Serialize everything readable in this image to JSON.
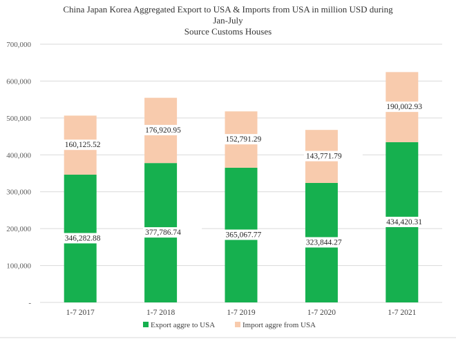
{
  "chart_data": {
    "type": "bar",
    "stacked": true,
    "title_lines": [
      "China Japan Korea Aggregated Export to USA & Imports from USA in million USD during",
      "Jan-July",
      "Source Customs Houses"
    ],
    "categories": [
      "1-7  2017",
      "1-7  2018",
      "1-7  2019",
      "1-7  2020",
      "1-7  2021"
    ],
    "series": [
      {
        "name": "Export aggre  to USA",
        "color": "#16b04f",
        "values": [
          346282.88,
          377786.74,
          365067.77,
          323844.27,
          434420.31
        ],
        "labels": [
          "346,282.88",
          "377,786.74",
          "365,067.77",
          "323,844.27",
          "434,420.31"
        ]
      },
      {
        "name": "Import aggre from USA",
        "color": "#f8cbad",
        "values": [
          160125.52,
          176920.95,
          152791.29,
          143771.79,
          190002.93
        ],
        "labels": [
          "160,125.52",
          "176,920.95",
          "152,791.29",
          "143,771.79",
          "190,002.93"
        ]
      }
    ],
    "ylim": [
      0,
      700000
    ],
    "yticks": [
      0,
      100000,
      200000,
      300000,
      400000,
      500000,
      600000,
      700000
    ],
    "ytick_labels": [
      "-",
      "100,000",
      "200,000",
      "300,000",
      "400,000",
      "500,000",
      "600,000",
      "700,000"
    ],
    "grid": true,
    "legend_position": "bottom",
    "xlabel": "",
    "ylabel": ""
  }
}
